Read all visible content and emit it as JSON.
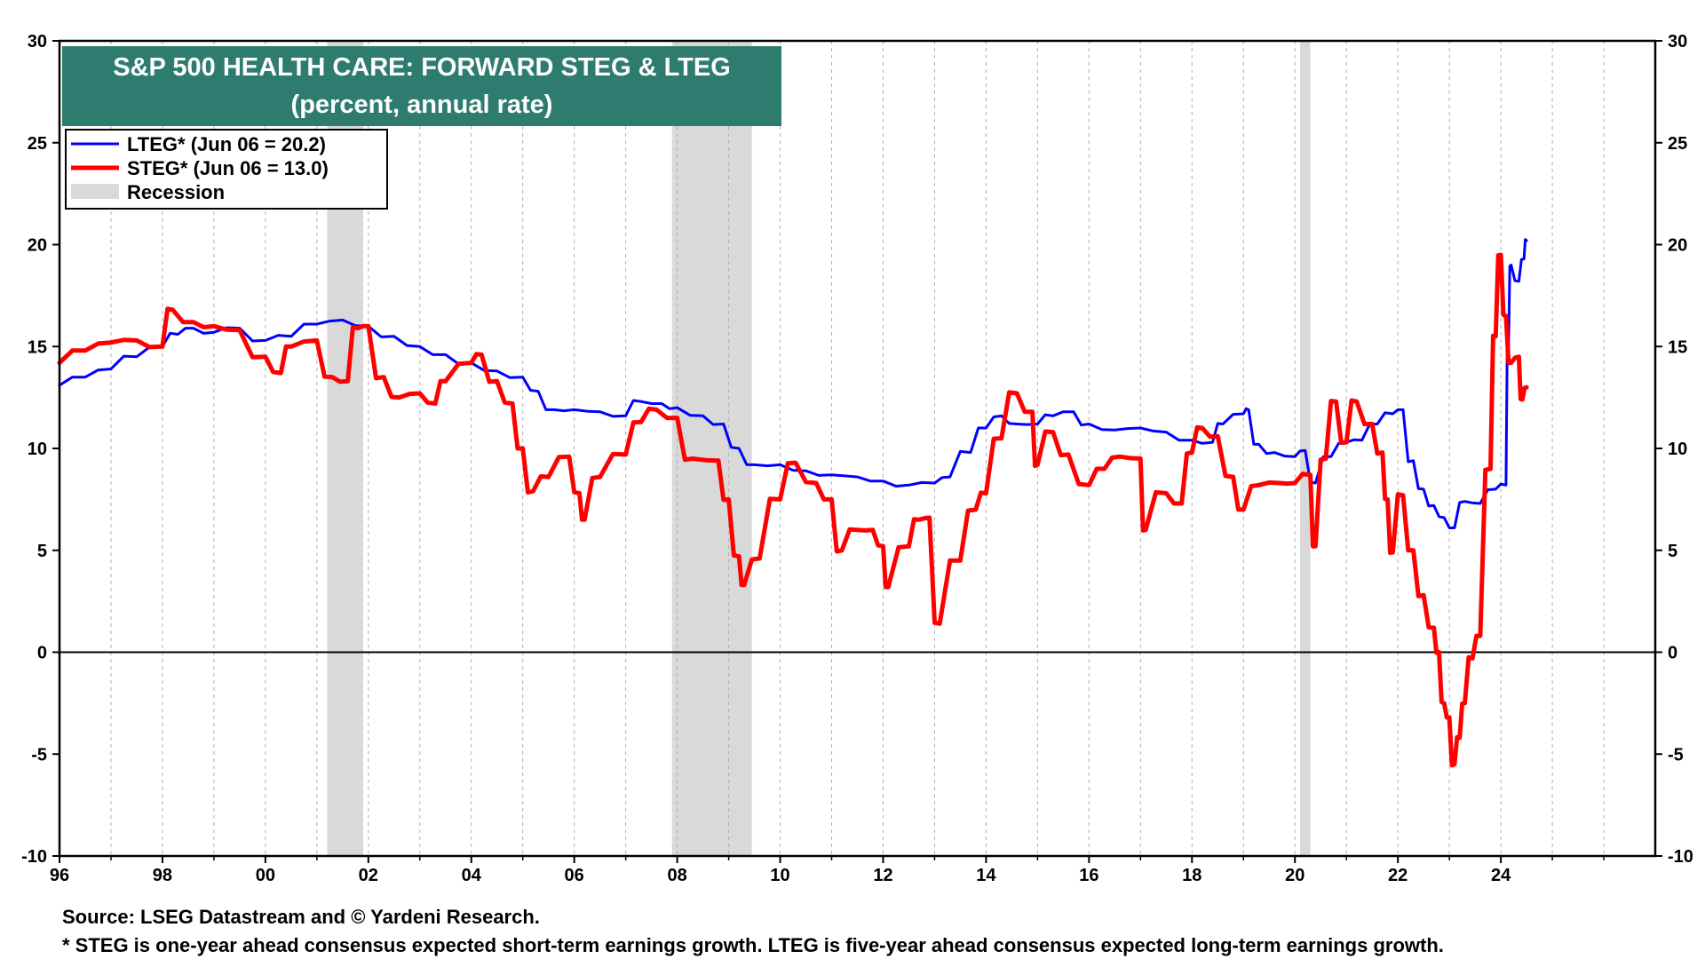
{
  "chart_data": {
    "type": "line",
    "title": "S&P 500 HEALTH CARE: FORWARD STEG & LTEG",
    "subtitle": "(percent, annual rate)",
    "xlabel": "",
    "ylabel": "",
    "xlim": [
      1996.0,
      2027.0
    ],
    "ylim": [
      -10,
      30
    ],
    "x_ticks": [
      1996,
      1998,
      2000,
      2002,
      2004,
      2006,
      2008,
      2010,
      2012,
      2014,
      2016,
      2018,
      2020,
      2022,
      2024
    ],
    "x_tick_labels": [
      "96",
      "98",
      "00",
      "02",
      "04",
      "06",
      "08",
      "10",
      "12",
      "14",
      "16",
      "18",
      "20",
      "22",
      "24"
    ],
    "y_ticks": [
      -10,
      -5,
      0,
      5,
      10,
      15,
      20,
      25,
      30
    ],
    "y_tick_labels": [
      "-10",
      "-5",
      "0",
      "5",
      "10",
      "15",
      "20",
      "25",
      "30"
    ],
    "grid": "vertical dashed",
    "legend_position": "top-left",
    "recessions": [
      {
        "start": 2001.2,
        "end": 2001.9
      },
      {
        "start": 2007.9,
        "end": 2009.45
      },
      {
        "start": 2020.1,
        "end": 2020.3
      }
    ],
    "recession_label": "Recession",
    "series": [
      {
        "name": "LTEG* (Jun 06 = 20.2)",
        "color": "#0000ff",
        "points": [
          [
            1996.0,
            13.1
          ],
          [
            1996.5,
            13.5
          ],
          [
            1997.0,
            13.9
          ],
          [
            1997.5,
            14.5
          ],
          [
            1998.0,
            15.0
          ],
          [
            1998.3,
            15.6
          ],
          [
            1998.6,
            15.9
          ],
          [
            1999.0,
            15.7
          ],
          [
            1999.5,
            15.9
          ],
          [
            2000.0,
            15.3
          ],
          [
            2000.5,
            15.5
          ],
          [
            2001.0,
            16.1
          ],
          [
            2001.5,
            16.3
          ],
          [
            2002.0,
            16.0
          ],
          [
            2002.5,
            15.5
          ],
          [
            2003.0,
            15.0
          ],
          [
            2003.5,
            14.6
          ],
          [
            2004.0,
            14.2
          ],
          [
            2004.5,
            13.8
          ],
          [
            2005.0,
            13.5
          ],
          [
            2005.3,
            12.8
          ],
          [
            2005.6,
            11.9
          ],
          [
            2006.0,
            11.9
          ],
          [
            2006.5,
            11.8
          ],
          [
            2007.0,
            11.6
          ],
          [
            2007.3,
            12.3
          ],
          [
            2007.7,
            12.2
          ],
          [
            2008.0,
            12.0
          ],
          [
            2008.5,
            11.6
          ],
          [
            2008.9,
            11.2
          ],
          [
            2009.2,
            10.0
          ],
          [
            2009.5,
            9.2
          ],
          [
            2010.0,
            9.2
          ],
          [
            2010.5,
            8.9
          ],
          [
            2011.0,
            8.7
          ],
          [
            2011.5,
            8.6
          ],
          [
            2012.0,
            8.4
          ],
          [
            2012.5,
            8.2
          ],
          [
            2013.0,
            8.3
          ],
          [
            2013.3,
            8.6
          ],
          [
            2013.7,
            9.8
          ],
          [
            2014.0,
            11.0
          ],
          [
            2014.3,
            11.6
          ],
          [
            2014.6,
            11.2
          ],
          [
            2015.0,
            11.2
          ],
          [
            2015.3,
            11.6
          ],
          [
            2015.7,
            11.8
          ],
          [
            2016.0,
            11.2
          ],
          [
            2016.5,
            10.9
          ],
          [
            2017.0,
            11.0
          ],
          [
            2017.5,
            10.8
          ],
          [
            2018.0,
            10.4
          ],
          [
            2018.4,
            10.3
          ],
          [
            2018.6,
            11.2
          ],
          [
            2019.0,
            11.7
          ],
          [
            2019.1,
            11.9
          ],
          [
            2019.3,
            10.2
          ],
          [
            2019.6,
            9.8
          ],
          [
            2020.0,
            9.6
          ],
          [
            2020.2,
            9.9
          ],
          [
            2020.4,
            8.3
          ],
          [
            2020.7,
            9.6
          ],
          [
            2021.0,
            10.3
          ],
          [
            2021.3,
            10.4
          ],
          [
            2021.6,
            11.2
          ],
          [
            2021.9,
            11.7
          ],
          [
            2022.1,
            11.9
          ],
          [
            2022.3,
            9.4
          ],
          [
            2022.5,
            8.0
          ],
          [
            2022.7,
            7.2
          ],
          [
            2022.9,
            6.6
          ],
          [
            2023.1,
            6.1
          ],
          [
            2023.3,
            7.4
          ],
          [
            2023.6,
            7.3
          ],
          [
            2023.9,
            8.0
          ],
          [
            2024.1,
            8.2
          ],
          [
            2024.15,
            15.0
          ],
          [
            2024.2,
            19.0
          ],
          [
            2024.35,
            18.2
          ],
          [
            2024.45,
            19.3
          ],
          [
            2024.5,
            20.2
          ]
        ]
      },
      {
        "name": "STEG* (Jun 06 = 13.0)",
        "color": "#ff0000",
        "points": [
          [
            1996.0,
            14.2
          ],
          [
            1996.5,
            14.8
          ],
          [
            1997.0,
            15.2
          ],
          [
            1997.5,
            15.3
          ],
          [
            1998.0,
            15.0
          ],
          [
            1998.2,
            16.8
          ],
          [
            1998.6,
            16.2
          ],
          [
            1999.0,
            16.0
          ],
          [
            1999.5,
            15.8
          ],
          [
            2000.0,
            14.5
          ],
          [
            2000.3,
            13.7
          ],
          [
            2000.5,
            15.0
          ],
          [
            2001.0,
            15.3
          ],
          [
            2001.3,
            13.5
          ],
          [
            2001.6,
            13.3
          ],
          [
            2001.8,
            15.9
          ],
          [
            2002.0,
            16.0
          ],
          [
            2002.3,
            13.5
          ],
          [
            2002.6,
            12.5
          ],
          [
            2003.0,
            12.7
          ],
          [
            2003.3,
            12.2
          ],
          [
            2003.5,
            13.3
          ],
          [
            2004.0,
            14.2
          ],
          [
            2004.2,
            14.6
          ],
          [
            2004.5,
            13.3
          ],
          [
            2004.8,
            12.2
          ],
          [
            2005.0,
            10.0
          ],
          [
            2005.2,
            7.9
          ],
          [
            2005.5,
            8.6
          ],
          [
            2005.9,
            9.6
          ],
          [
            2006.1,
            7.8
          ],
          [
            2006.2,
            6.5
          ],
          [
            2006.5,
            8.6
          ],
          [
            2007.0,
            9.7
          ],
          [
            2007.3,
            11.3
          ],
          [
            2007.6,
            11.9
          ],
          [
            2008.0,
            11.5
          ],
          [
            2008.3,
            9.5
          ],
          [
            2008.8,
            9.4
          ],
          [
            2009.0,
            7.5
          ],
          [
            2009.2,
            4.7
          ],
          [
            2009.3,
            3.3
          ],
          [
            2009.6,
            4.6
          ],
          [
            2010.0,
            7.5
          ],
          [
            2010.3,
            9.3
          ],
          [
            2010.7,
            8.3
          ],
          [
            2011.0,
            7.5
          ],
          [
            2011.2,
            5.0
          ],
          [
            2011.5,
            6.0
          ],
          [
            2011.8,
            6.0
          ],
          [
            2012.0,
            5.2
          ],
          [
            2012.1,
            3.2
          ],
          [
            2012.5,
            5.2
          ],
          [
            2012.7,
            6.5
          ],
          [
            2012.9,
            6.6
          ],
          [
            2013.1,
            1.4
          ],
          [
            2013.5,
            4.5
          ],
          [
            2013.8,
            7.0
          ],
          [
            2014.0,
            7.8
          ],
          [
            2014.3,
            10.5
          ],
          [
            2014.6,
            12.7
          ],
          [
            2014.9,
            11.8
          ],
          [
            2015.0,
            9.2
          ],
          [
            2015.3,
            10.8
          ],
          [
            2015.6,
            9.7
          ],
          [
            2016.0,
            8.2
          ],
          [
            2016.3,
            9.0
          ],
          [
            2016.6,
            9.6
          ],
          [
            2017.0,
            9.5
          ],
          [
            2017.1,
            6.0
          ],
          [
            2017.5,
            7.8
          ],
          [
            2017.8,
            7.3
          ],
          [
            2018.0,
            9.8
          ],
          [
            2018.2,
            11.0
          ],
          [
            2018.5,
            10.6
          ],
          [
            2018.8,
            8.6
          ],
          [
            2019.0,
            7.0
          ],
          [
            2019.3,
            8.2
          ],
          [
            2019.7,
            8.3
          ],
          [
            2020.0,
            8.3
          ],
          [
            2020.3,
            8.7
          ],
          [
            2020.4,
            5.2
          ],
          [
            2020.6,
            9.5
          ],
          [
            2020.8,
            12.3
          ],
          [
            2021.0,
            10.3
          ],
          [
            2021.2,
            12.3
          ],
          [
            2021.5,
            11.2
          ],
          [
            2021.7,
            9.8
          ],
          [
            2021.8,
            7.5
          ],
          [
            2021.9,
            4.9
          ],
          [
            2022.1,
            7.7
          ],
          [
            2022.3,
            5.0
          ],
          [
            2022.5,
            2.8
          ],
          [
            2022.7,
            1.2
          ],
          [
            2022.8,
            0.0
          ],
          [
            2022.9,
            -2.5
          ],
          [
            2023.0,
            -3.2
          ],
          [
            2023.1,
            -5.5
          ],
          [
            2023.2,
            -4.2
          ],
          [
            2023.3,
            -2.5
          ],
          [
            2023.45,
            -0.3
          ],
          [
            2023.6,
            0.8
          ],
          [
            2023.8,
            9.0
          ],
          [
            2023.9,
            15.5
          ],
          [
            2024.0,
            19.5
          ],
          [
            2024.1,
            16.5
          ],
          [
            2024.2,
            14.2
          ],
          [
            2024.35,
            14.5
          ],
          [
            2024.42,
            12.4
          ],
          [
            2024.5,
            13.0
          ]
        ]
      }
    ]
  },
  "footer": {
    "source": "Source: LSEG Datastream and © Yardeni Research.",
    "note": "* STEG is one-year ahead consensus expected short-term earnings growth. LTEG is five-year ahead consensus expected long-term earnings growth."
  },
  "colors": {
    "title_bg": "#2e7c6f",
    "recession": "#d9d9d9",
    "grid": "#b0b0b0"
  }
}
